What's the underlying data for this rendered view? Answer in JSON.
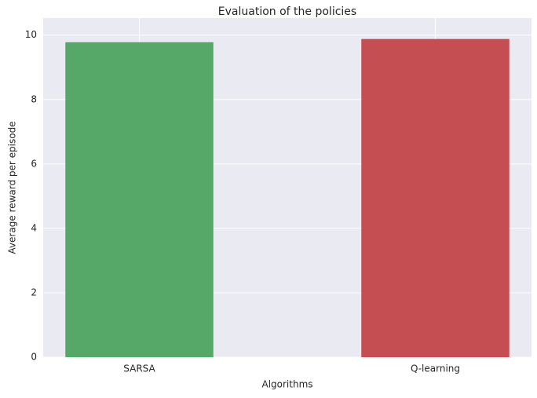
{
  "chart_data": {
    "type": "bar",
    "title": "Evaluation of the policies",
    "xlabel": "Algorithms",
    "ylabel": "Average reward per episode",
    "categories": [
      "SARSA",
      "Q-learning"
    ],
    "values": [
      9.78,
      9.88
    ],
    "colors": [
      "#55a868",
      "#c44e52"
    ],
    "ylim": [
      0,
      10.53
    ],
    "yticks": [
      0,
      2,
      4,
      6,
      8,
      10
    ],
    "grid": true
  }
}
